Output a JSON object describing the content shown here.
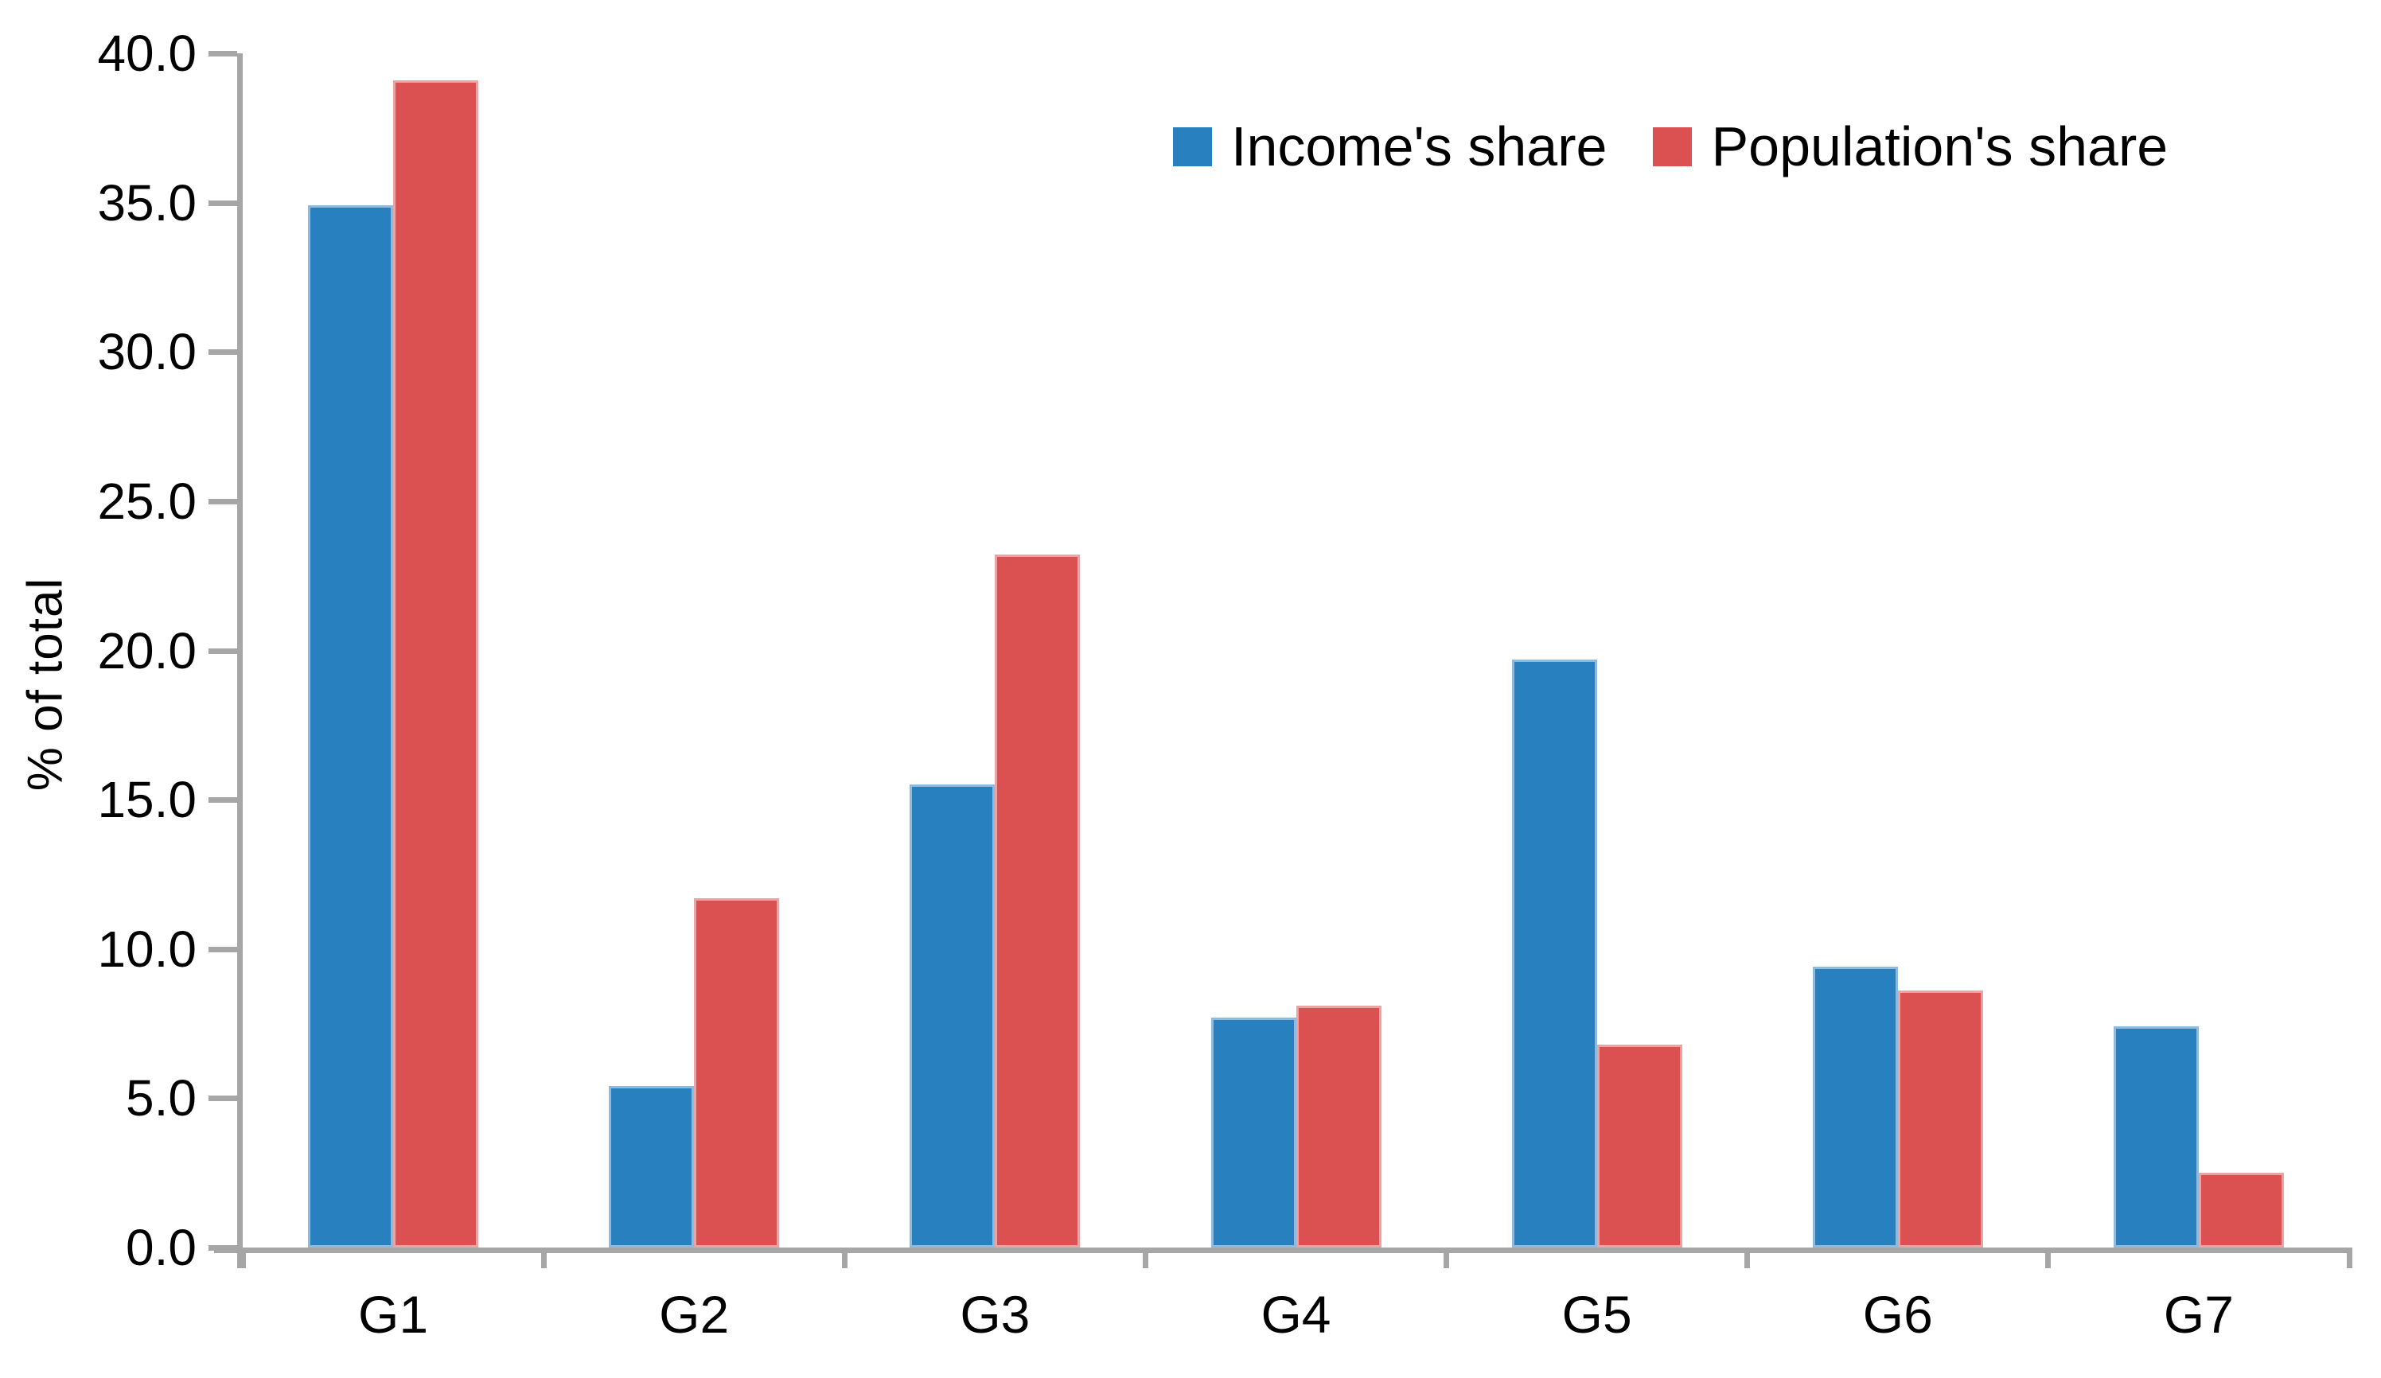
{
  "chart_data": {
    "type": "bar",
    "title": "",
    "xlabel": "",
    "ylabel": "% of total",
    "categories": [
      "G1",
      "G2",
      "G3",
      "G4",
      "G5",
      "G6",
      "G7"
    ],
    "series": [
      {
        "name": "Income's share",
        "color": "#2880BE",
        "border_color": "#8FBADF",
        "values": [
          34.9,
          5.4,
          15.5,
          7.7,
          19.7,
          9.4,
          7.4
        ]
      },
      {
        "name": "Population's share",
        "color": "#DB5151",
        "border_color": "#ECA3A3",
        "values": [
          39.1,
          11.7,
          23.2,
          8.1,
          6.8,
          8.6,
          2.5
        ]
      }
    ],
    "y_ticks": [
      "40.0",
      "35.0",
      "30.0",
      "25.0",
      "20.0",
      "15.0",
      "10.0",
      "5.0",
      "0.0"
    ],
    "ylim": [
      0,
      40
    ],
    "grid": "off",
    "legend_position": "top-right",
    "axis_color": "#A6A6A6",
    "text_color": "#000000"
  }
}
